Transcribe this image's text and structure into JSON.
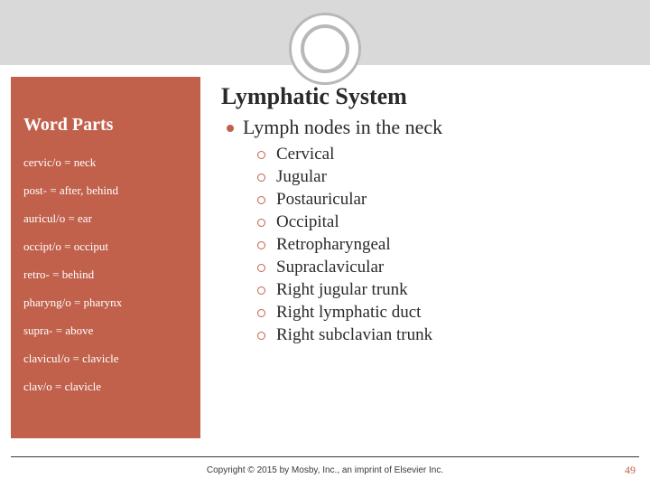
{
  "colors": {
    "accent": "#c1614c",
    "band": "#d9d9d9",
    "ring": "#b8b8b8",
    "text": "#2a2a2a",
    "white": "#ffffff"
  },
  "sidebar": {
    "title": "Word Parts",
    "items": [
      "cervic/o = neck",
      "post- = after, behind",
      "auricul/o = ear",
      "occipt/o = occiput",
      "retro- = behind",
      "pharyng/o = pharynx",
      "supra- = above",
      "clavicul/o = clavicle",
      "clav/o = clavicle"
    ]
  },
  "main": {
    "title": "Lymphatic System",
    "bullet": "Lymph nodes in the neck",
    "sub": [
      "Cervical",
      "Jugular",
      "Postauricular",
      "Occipital",
      "Retropharyngeal",
      "Supraclavicular",
      "Right jugular trunk",
      "Right lymphatic duct",
      "Right subclavian trunk"
    ]
  },
  "footer": {
    "copyright": "Copyright © 2015 by Mosby, Inc., an imprint of Elsevier Inc.",
    "slide": "49"
  }
}
